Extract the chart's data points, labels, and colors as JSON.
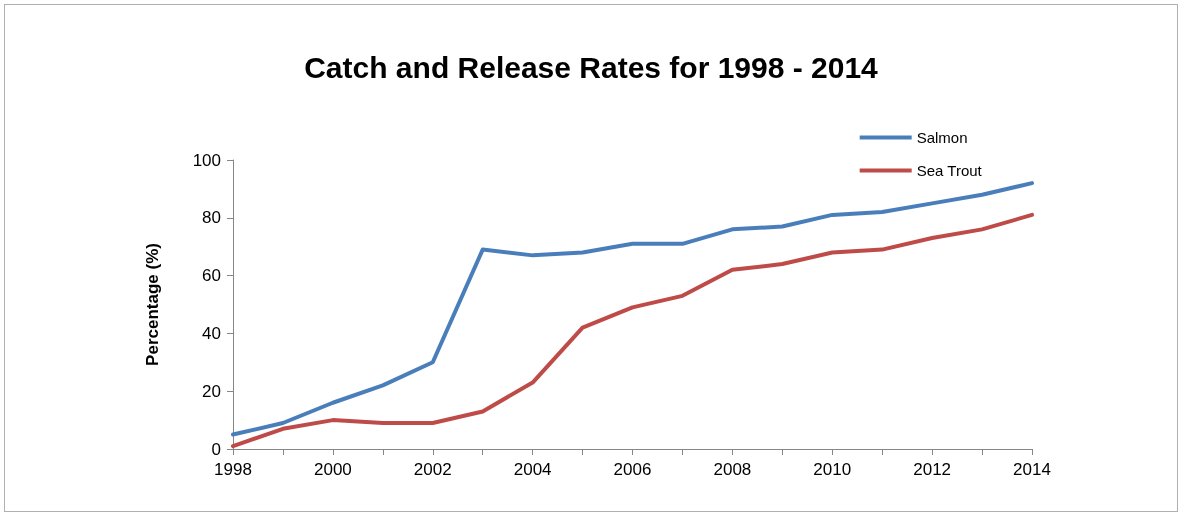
{
  "chart_data": {
    "type": "line",
    "title": "Catch and Release Rates for 1998 - 2014",
    "ylabel": "Percentage (%)",
    "x": [
      1998,
      1999,
      2000,
      2001,
      2002,
      2003,
      2004,
      2005,
      2006,
      2007,
      2008,
      2009,
      2010,
      2011,
      2012,
      2013,
      2014
    ],
    "series": [
      {
        "name": "Salmon",
        "color": "#4a7ebb",
        "values": [
          5,
          9,
          16,
          22,
          30,
          69,
          67,
          68,
          71,
          71,
          76,
          77,
          81,
          82,
          85,
          88,
          92
        ]
      },
      {
        "name": "Sea Trout",
        "color": "#be4b48",
        "values": [
          1,
          7,
          10,
          9,
          9,
          13,
          23,
          42,
          49,
          53,
          62,
          64,
          68,
          69,
          73,
          76,
          81
        ]
      }
    ],
    "xlim": [
      1998,
      2014
    ],
    "xticks": [
      1998,
      {
        "value": 1999,
        "label": null
      },
      2000,
      {
        "value": 2001,
        "label": null
      },
      2002,
      {
        "value": 2003,
        "label": null
      },
      2004,
      {
        "value": 2005,
        "label": null
      },
      2006,
      {
        "value": 2007,
        "label": null
      },
      2008,
      {
        "value": 2009,
        "label": null
      },
      2010,
      {
        "value": 2011,
        "label": null
      },
      2012,
      {
        "value": 2013,
        "label": null
      },
      2014
    ],
    "ylim": [
      0,
      100
    ],
    "yticks": [
      0,
      20,
      40,
      60,
      80,
      100
    ],
    "grid": false,
    "legend": "top right",
    "marker": "none",
    "line_style": "solid"
  }
}
